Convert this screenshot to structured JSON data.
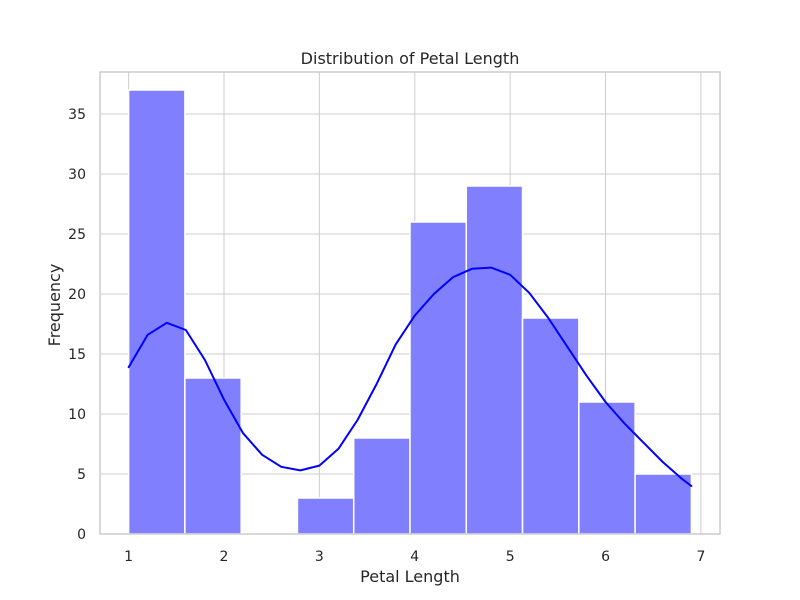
{
  "chart_data": {
    "type": "histogram",
    "title": "Distribution of Petal Length",
    "xlabel": "Petal Length",
    "ylabel": "Frequency",
    "xlim": [
      0.7,
      7.2
    ],
    "ylim": [
      0,
      38.5
    ],
    "x_ticks": [
      1,
      2,
      3,
      4,
      5,
      6,
      7
    ],
    "y_ticks": [
      0,
      5,
      10,
      15,
      20,
      25,
      30,
      35
    ],
    "grid": true,
    "bins": [
      {
        "x0": 1.0,
        "x1": 1.59,
        "count": 37
      },
      {
        "x0": 1.59,
        "x1": 2.18,
        "count": 13
      },
      {
        "x0": 2.18,
        "x1": 2.77,
        "count": 0
      },
      {
        "x0": 2.77,
        "x1": 3.36,
        "count": 3
      },
      {
        "x0": 3.36,
        "x1": 3.95,
        "count": 8
      },
      {
        "x0": 3.95,
        "x1": 4.54,
        "count": 26
      },
      {
        "x0": 4.54,
        "x1": 5.13,
        "count": 29
      },
      {
        "x0": 5.13,
        "x1": 5.72,
        "count": 18
      },
      {
        "x0": 5.72,
        "x1": 6.31,
        "count": 11
      },
      {
        "x0": 6.31,
        "x1": 6.9,
        "count": 5
      }
    ],
    "kde_curve": {
      "x": [
        1.0,
        1.2,
        1.4,
        1.6,
        1.8,
        2.0,
        2.2,
        2.4,
        2.6,
        2.8,
        3.0,
        3.2,
        3.4,
        3.6,
        3.8,
        4.0,
        4.2,
        4.4,
        4.6,
        4.8,
        5.0,
        5.2,
        5.4,
        5.6,
        5.8,
        6.0,
        6.2,
        6.4,
        6.6,
        6.8,
        6.9
      ],
      "y": [
        13.9,
        16.6,
        17.6,
        17.0,
        14.5,
        11.2,
        8.4,
        6.6,
        5.6,
        5.3,
        5.7,
        7.1,
        9.5,
        12.5,
        15.8,
        18.2,
        20.0,
        21.4,
        22.1,
        22.2,
        21.6,
        20.1,
        18.0,
        15.6,
        13.2,
        11.0,
        9.2,
        7.6,
        6.0,
        4.6,
        4.0
      ]
    },
    "colors": {
      "bar_fill": "#8080ff",
      "bar_edge": "#ffffff",
      "kde_line": "#0000ff",
      "grid": "#cccccc",
      "axis": "#cccccc"
    }
  }
}
